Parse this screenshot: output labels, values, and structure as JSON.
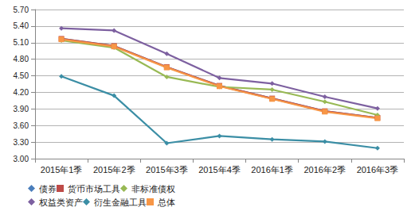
{
  "chart_data": {
    "type": "line",
    "categories": [
      "2015年1季",
      "2015年2季",
      "2015年3季",
      "2015年4季",
      "2016年1季",
      "2016年2季",
      "2016年3季"
    ],
    "series": [
      {
        "name": "债券",
        "color": "#4a7ebb",
        "marker": "diamond",
        "values": [
          5.17,
          5.04,
          4.66,
          4.32,
          4.09,
          3.86,
          3.74
        ]
      },
      {
        "name": "货币市场工具",
        "color": "#be4b48",
        "marker": "square",
        "values": [
          5.17,
          5.04,
          4.66,
          4.32,
          4.09,
          3.86,
          3.74
        ]
      },
      {
        "name": "非标准债权",
        "color": "#98b954",
        "marker": "diamond",
        "values": [
          5.14,
          5.01,
          4.48,
          4.3,
          4.25,
          4.03,
          3.79
        ]
      },
      {
        "name": "权益类资产",
        "color": "#7d60a0",
        "marker": "diamond",
        "values": [
          5.36,
          5.32,
          4.9,
          4.46,
          4.36,
          4.12,
          3.91
        ]
      },
      {
        "name": "衍生金融工具",
        "color": "#3b8ea5",
        "marker": "diamond",
        "values": [
          4.49,
          4.14,
          3.28,
          3.41,
          3.35,
          3.31,
          3.19
        ]
      },
      {
        "name": "总体",
        "color": "#f79646",
        "marker": "square",
        "values": [
          5.16,
          5.03,
          4.65,
          4.31,
          4.08,
          3.85,
          3.73
        ]
      }
    ],
    "ylim": [
      3,
      5.7
    ],
    "yticks": [
      {
        "value": 3,
        "label": "3.00"
      },
      {
        "value": 3.3,
        "label": "3.30"
      },
      {
        "value": 3.6,
        "label": "3.60"
      },
      {
        "value": 3.9,
        "label": "3.90"
      },
      {
        "value": 4.2,
        "label": "4.20"
      },
      {
        "value": 4.5,
        "label": "4.50"
      },
      {
        "value": 4.8,
        "label": "4.80"
      },
      {
        "value": 5.1,
        "label": "5.10"
      },
      {
        "value": 5.4,
        "label": "5.40"
      },
      {
        "value": 5.7,
        "label": "5.70"
      }
    ],
    "grid": true,
    "legend": "bottom"
  }
}
